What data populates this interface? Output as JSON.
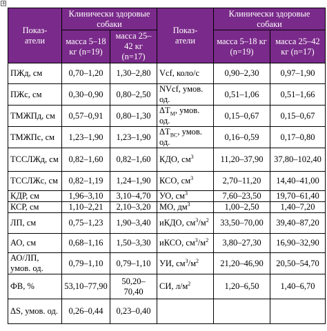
{
  "header": {
    "param_label": "Показ-\nатели",
    "group_label": "Клинически здоровые собаки",
    "group_label_right": "Клинически здоровые собаки",
    "col_small": "масса 5–18 кг (n=19)",
    "col_large": "масса 25–42 кг (n=17)"
  },
  "rows": [
    {
      "lp": "ПЖд, см",
      "l1": "0,70–1,20",
      "l2": "1,30–2,80",
      "rp": "Vcf, коло/с",
      "r1": "0,90–2,30",
      "r2": "0,97–1,90"
    },
    {
      "lp": "ПЖс, см",
      "l1": "0,30–0,90",
      "l2": "0,80–2,50",
      "rp": "NVcf, умов. од.",
      "r1": "0,51–1,06",
      "r2": "0,51–1,66"
    },
    {
      "lp": "ТМЖПд, см",
      "l1": "0,57–0,91",
      "l2": "0,80–1,30",
      "rp": "ΔTм, умов. од.",
      "r1": "0,15–0,67",
      "r2": "0,15–0,67"
    },
    {
      "lp": "ТМЖПс, см",
      "l1": "1,23–1,90",
      "l2": "1,23–1,90",
      "rp": "ΔTвс, умов. од.",
      "r1": "0,16–0,59",
      "r2": "0,17–0,80"
    },
    {
      "lp": "ТССЛЖд, см",
      "l1": "0,82–1,60",
      "l2": "0,82–1,60",
      "rp": "КДО, см3",
      "r1": "11,20–37,90",
      "r2": "37,80–102,40"
    },
    {
      "lp": "ТССЛЖс, см",
      "l1": "0,82–1,19",
      "l2": "1,24–1,90",
      "rp": "КСО, см3",
      "r1": "2,70–11,20",
      "r2": "14,40–41,00"
    },
    {
      "lp": "КДР, см",
      "l1": "1,96–3,10",
      "l2": "3,10–4,70",
      "rp": "УО, см3",
      "r1": "7,60–23,50",
      "r2": "19,70–61,40"
    },
    {
      "lp": "КСР, см",
      "l1": "1,10–2,21",
      "l2": "2,10–3,20",
      "rp": "МО, дм3",
      "r1": "1,00–2,50",
      "r2": "1,40–7,20"
    },
    {
      "lp": "ЛП, см",
      "l1": "0,75–1,23",
      "l2": "1,90–3,40",
      "rp": "иКДО, см3/м2",
      "r1": "33,50–70,00",
      "r2": "39,40–87,20"
    },
    {
      "lp": "АО, см",
      "l1": "0,68–1,16",
      "l2": "1,50–3,30",
      "rp": "иКСО, см3/м2",
      "r1": "3,80–27,30",
      "r2": "16,90–32,90"
    },
    {
      "lp": "АО/ЛП, умов. од.",
      "l1": "0,79–1,10",
      "l2": "0,79–1,10",
      "rp": "УИ, см3/м2",
      "r1": "21,20–46,90",
      "r2": "20,50–54,70"
    },
    {
      "lp": "ФВ, %",
      "l1": "53,10–77,90",
      "l2": "50,20–70,40",
      "rp": "СИ, л/м2",
      "r1": "1,20–6,50",
      "r2": "1,40–6,70"
    },
    {
      "lp": "ΔS, умов. од.",
      "l1": "0,26–0,44",
      "l2": "0,23–0,40",
      "rp": "",
      "r1": "",
      "r2": ""
    }
  ]
}
